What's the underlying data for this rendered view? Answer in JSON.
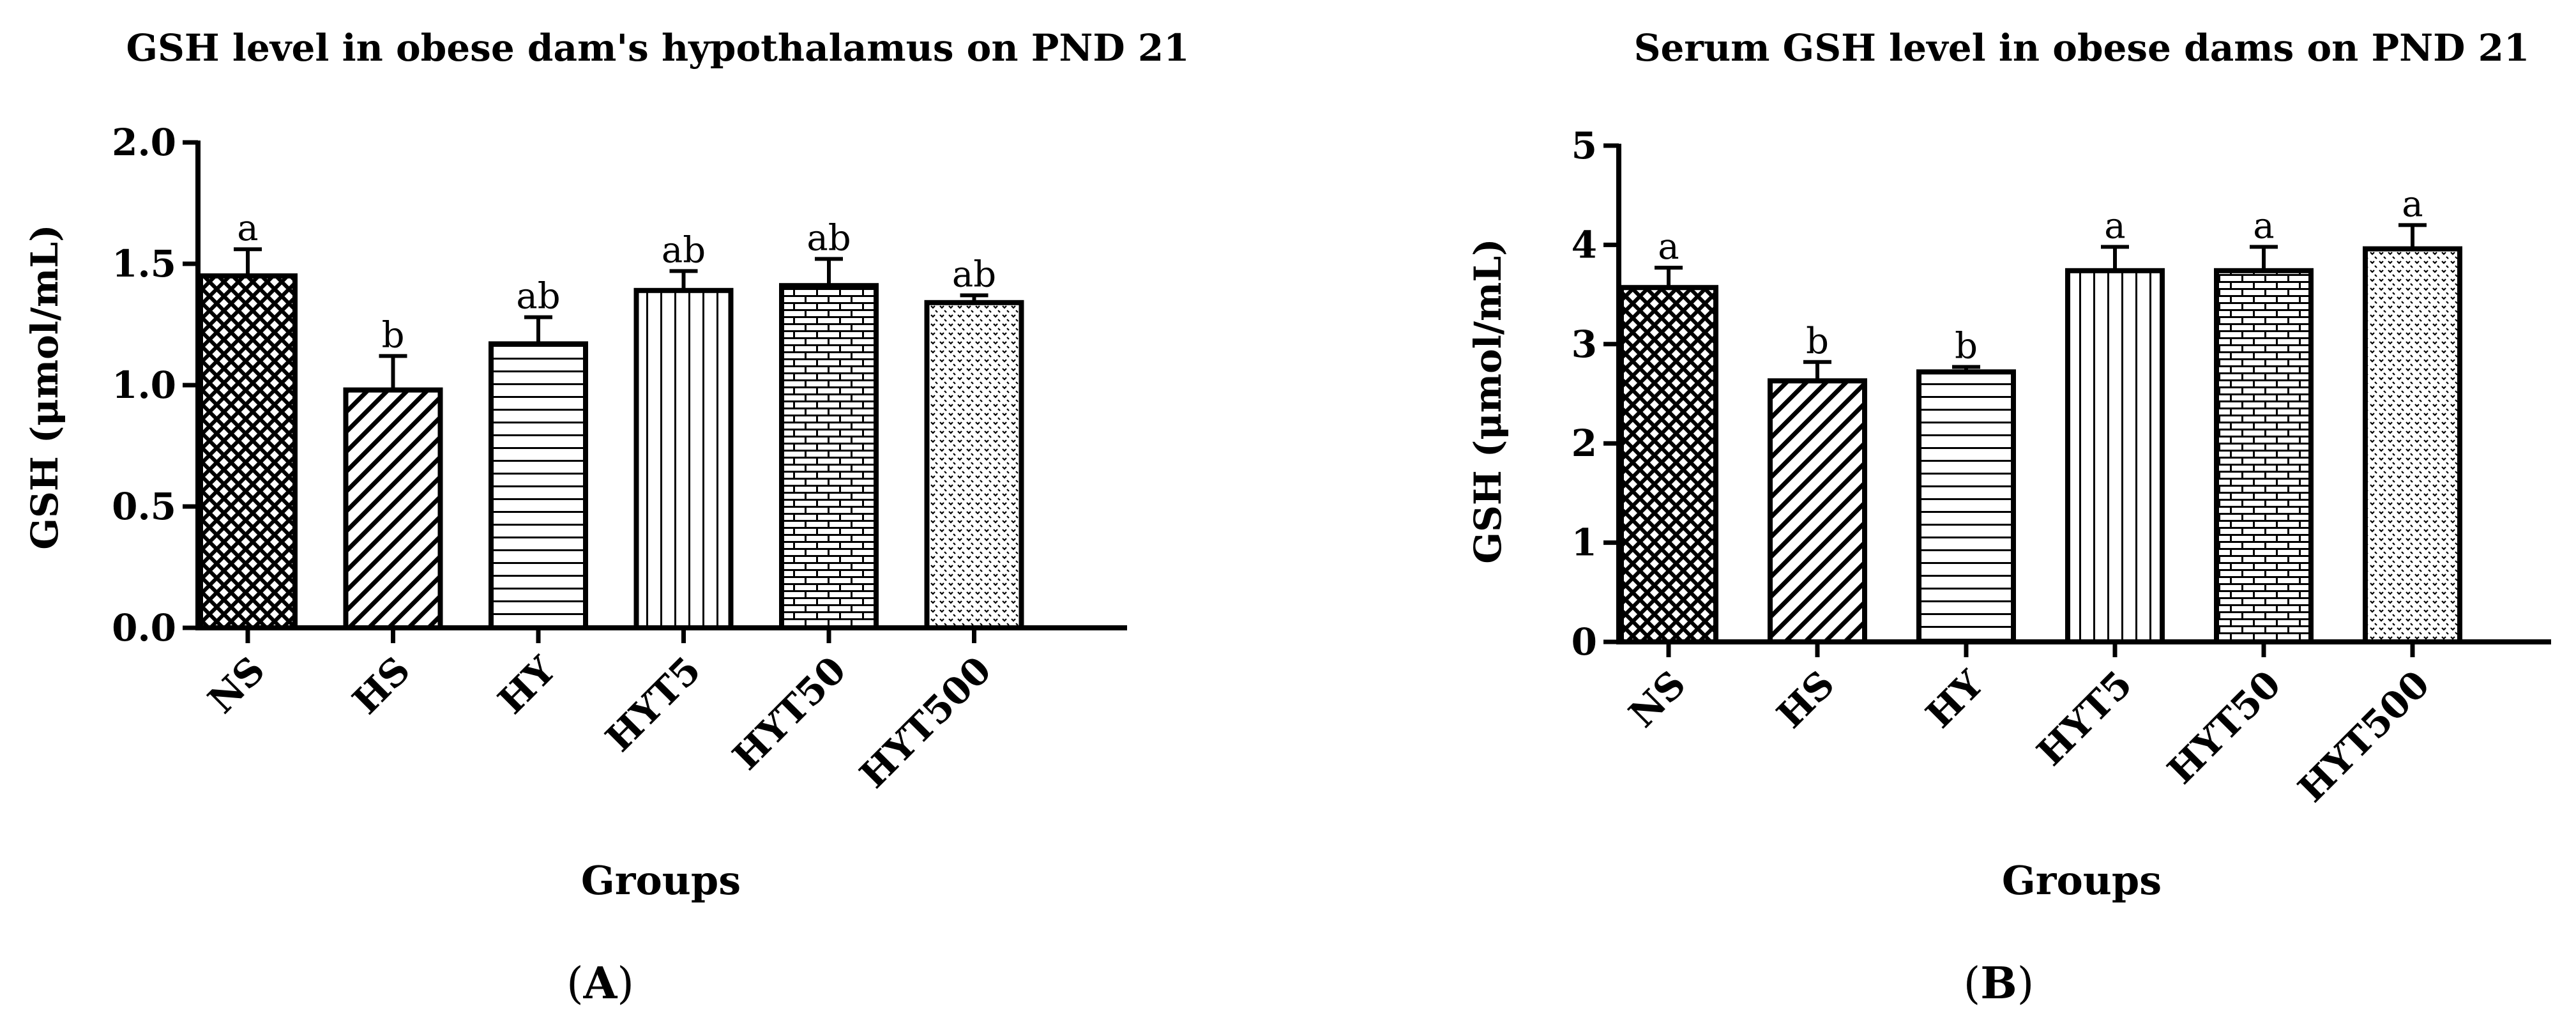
{
  "chart_data": [
    {
      "type": "bar",
      "panel_label": "A",
      "title": "GSH level in obese dam's hypothalamus on PND 21",
      "xlabel": "Groups",
      "ylabel": "GSH (μmol/mL)",
      "ylim": [
        0,
        2.0
      ],
      "yticks": [
        "0.0",
        "0.5",
        "1.0",
        "1.5",
        "2.0"
      ],
      "categories": [
        "NS",
        "HS",
        "HY",
        "HYT5",
        "HYT50",
        "HYT500"
      ],
      "values": [
        1.45,
        0.98,
        1.17,
        1.39,
        1.41,
        1.34
      ],
      "errors": [
        0.11,
        0.14,
        0.11,
        0.08,
        0.11,
        0.03
      ],
      "significance": [
        "a",
        "b",
        "ab",
        "ab",
        "ab",
        "ab"
      ],
      "patterns": [
        "checker",
        "diagonal",
        "horizontal",
        "vertical",
        "brick",
        "dots"
      ],
      "grid": false,
      "legend": "none"
    },
    {
      "type": "bar",
      "panel_label": "B",
      "title": "Serum GSH level in obese dams on PND 21",
      "xlabel": "Groups",
      "ylabel": "GSH (μmol/mL)",
      "ylim": [
        0,
        5
      ],
      "yticks": [
        "0",
        "1",
        "2",
        "3",
        "4",
        "5"
      ],
      "categories": [
        "NS",
        "HS",
        "HY",
        "HYT5",
        "HYT50",
        "HYT500"
      ],
      "values": [
        3.57,
        2.63,
        2.72,
        3.74,
        3.74,
        3.96
      ],
      "errors": [
        0.2,
        0.19,
        0.05,
        0.24,
        0.24,
        0.24
      ],
      "significance": [
        "a",
        "b",
        "b",
        "a",
        "a",
        "a"
      ],
      "patterns": [
        "checker",
        "diagonal",
        "horizontal",
        "vertical",
        "brick",
        "dots"
      ],
      "grid": false,
      "legend": "none"
    }
  ]
}
